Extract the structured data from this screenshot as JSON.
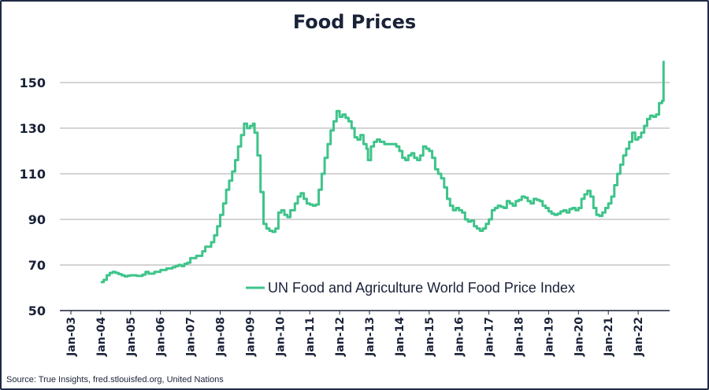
{
  "chart_data": {
    "type": "line",
    "title": "Food Prices",
    "source": "Source: True Insights, fred.stlouisfed.org, United Nations",
    "ylim": [
      50,
      160
    ],
    "yticks": [
      50,
      70,
      90,
      110,
      130,
      150
    ],
    "xlim": [
      2003,
      2023
    ],
    "xticks": [
      {
        "label": "Jan-03",
        "x": 2003
      },
      {
        "label": "Jan-04",
        "x": 2004
      },
      {
        "label": "Jan-05",
        "x": 2005
      },
      {
        "label": "Jan-06",
        "x": 2006
      },
      {
        "label": "Jan-07",
        "x": 2007
      },
      {
        "label": "Jan-08",
        "x": 2008
      },
      {
        "label": "Jan-09",
        "x": 2009
      },
      {
        "label": "Jan-10",
        "x": 2010
      },
      {
        "label": "Jan-11",
        "x": 2011
      },
      {
        "label": "Jan-12",
        "x": 2012
      },
      {
        "label": "Jan-13",
        "x": 2013
      },
      {
        "label": "Jan-14",
        "x": 2014
      },
      {
        "label": "Jan-15",
        "x": 2015
      },
      {
        "label": "Jan-16",
        "x": 2016
      },
      {
        "label": "Jan-17",
        "x": 2017
      },
      {
        "label": "Jan-18",
        "x": 2018
      },
      {
        "label": "Jan-19",
        "x": 2019
      },
      {
        "label": "Jan-20",
        "x": 2020
      },
      {
        "label": "Jan-21",
        "x": 2021
      },
      {
        "label": "Jan-22",
        "x": 2022
      }
    ],
    "grid": true,
    "legend_position": "lower-right",
    "colors": {
      "series": "#3ec48a",
      "grid": "#a9a9a9",
      "axis": "#1a2238",
      "border": "#1f2a44"
    },
    "series": [
      {
        "name": "UN Food and Agriculture World Food Price Index",
        "points": [
          [
            2004.0,
            62.5
          ],
          [
            2004.1,
            63.5
          ],
          [
            2004.2,
            65.5
          ],
          [
            2004.3,
            66.5
          ],
          [
            2004.4,
            67.0
          ],
          [
            2004.5,
            66.5
          ],
          [
            2004.6,
            66.0
          ],
          [
            2004.7,
            65.5
          ],
          [
            2004.8,
            65.0
          ],
          [
            2004.9,
            65.3
          ],
          [
            2005.0,
            65.5
          ],
          [
            2005.2,
            65.2
          ],
          [
            2005.4,
            65.8
          ],
          [
            2005.5,
            67.0
          ],
          [
            2005.6,
            66.2
          ],
          [
            2005.8,
            67.0
          ],
          [
            2006.0,
            67.8
          ],
          [
            2006.2,
            68.5
          ],
          [
            2006.4,
            69.0
          ],
          [
            2006.5,
            69.5
          ],
          [
            2006.6,
            70.0
          ],
          [
            2006.7,
            69.5
          ],
          [
            2006.8,
            70.5
          ],
          [
            2006.9,
            71.0
          ],
          [
            2007.0,
            73.0
          ],
          [
            2007.2,
            74.0
          ],
          [
            2007.4,
            76.0
          ],
          [
            2007.5,
            78.0
          ],
          [
            2007.7,
            80.0
          ],
          [
            2007.8,
            83.0
          ],
          [
            2007.9,
            87.0
          ],
          [
            2008.0,
            92.0
          ],
          [
            2008.1,
            97.0
          ],
          [
            2008.2,
            103.0
          ],
          [
            2008.3,
            107.0
          ],
          [
            2008.4,
            111.0
          ],
          [
            2008.5,
            116.0
          ],
          [
            2008.6,
            122.0
          ],
          [
            2008.7,
            127.0
          ],
          [
            2008.8,
            132.0
          ],
          [
            2008.9,
            130.0
          ],
          [
            2009.0,
            131.0
          ],
          [
            2009.1,
            132.0
          ],
          [
            2009.15,
            128.0
          ],
          [
            2009.25,
            118.0
          ],
          [
            2009.35,
            102.0
          ],
          [
            2009.45,
            88.0
          ],
          [
            2009.55,
            86.0
          ],
          [
            2009.65,
            85.0
          ],
          [
            2009.75,
            84.5
          ],
          [
            2009.85,
            86.0
          ],
          [
            2009.95,
            93.0
          ],
          [
            2010.05,
            94.0
          ],
          [
            2010.15,
            92.0
          ],
          [
            2010.25,
            91.0
          ],
          [
            2010.35,
            94.0
          ],
          [
            2010.5,
            97.0
          ],
          [
            2010.6,
            100.0
          ],
          [
            2010.7,
            101.5
          ],
          [
            2010.8,
            99.0
          ],
          [
            2010.9,
            97.0
          ],
          [
            2011.0,
            96.5
          ],
          [
            2011.1,
            96.0
          ],
          [
            2011.2,
            96.5
          ],
          [
            2011.3,
            103.0
          ],
          [
            2011.4,
            110.0
          ],
          [
            2011.5,
            117.0
          ],
          [
            2011.6,
            123.0
          ],
          [
            2011.7,
            129.0
          ],
          [
            2011.8,
            133.0
          ],
          [
            2011.9,
            137.5
          ],
          [
            2012.0,
            135.0
          ],
          [
            2012.1,
            136.0
          ],
          [
            2012.2,
            134.5
          ],
          [
            2012.3,
            133.0
          ],
          [
            2012.4,
            130.0
          ],
          [
            2012.5,
            126.0
          ],
          [
            2012.6,
            125.0
          ],
          [
            2012.7,
            127.0
          ],
          [
            2012.8,
            123.0
          ],
          [
            2012.9,
            121.0
          ],
          [
            2012.95,
            116.0
          ],
          [
            2013.05,
            122.0
          ],
          [
            2013.15,
            124.0
          ],
          [
            2013.25,
            125.0
          ],
          [
            2013.35,
            124.0
          ],
          [
            2013.5,
            123.0
          ],
          [
            2013.7,
            123.0
          ],
          [
            2013.9,
            122.0
          ],
          [
            2014.0,
            120.0
          ],
          [
            2014.1,
            117.0
          ],
          [
            2014.2,
            116.0
          ],
          [
            2014.3,
            118.0
          ],
          [
            2014.4,
            119.0
          ],
          [
            2014.5,
            117.0
          ],
          [
            2014.6,
            116.0
          ],
          [
            2014.7,
            118.0
          ],
          [
            2014.8,
            122.0
          ],
          [
            2014.9,
            121.0
          ],
          [
            2015.0,
            120.0
          ],
          [
            2015.1,
            117.0
          ],
          [
            2015.2,
            112.0
          ],
          [
            2015.3,
            110.0
          ],
          [
            2015.4,
            108.0
          ],
          [
            2015.5,
            104.0
          ],
          [
            2015.6,
            99.0
          ],
          [
            2015.7,
            96.0
          ],
          [
            2015.8,
            94.0
          ],
          [
            2015.9,
            95.0
          ],
          [
            2016.0,
            94.0
          ],
          [
            2016.1,
            93.0
          ],
          [
            2016.2,
            90.0
          ],
          [
            2016.3,
            89.0
          ],
          [
            2016.4,
            89.5
          ],
          [
            2016.5,
            87.0
          ],
          [
            2016.6,
            86.0
          ],
          [
            2016.7,
            85.0
          ],
          [
            2016.8,
            86.0
          ],
          [
            2016.9,
            88.0
          ],
          [
            2017.0,
            90.0
          ],
          [
            2017.1,
            94.0
          ],
          [
            2017.2,
            95.0
          ],
          [
            2017.3,
            96.0
          ],
          [
            2017.4,
            95.5
          ],
          [
            2017.5,
            95.0
          ],
          [
            2017.6,
            98.0
          ],
          [
            2017.7,
            97.0
          ],
          [
            2017.8,
            96.0
          ],
          [
            2017.9,
            98.0
          ],
          [
            2018.0,
            98.5
          ],
          [
            2018.1,
            100.0
          ],
          [
            2018.2,
            99.5
          ],
          [
            2018.3,
            98.0
          ],
          [
            2018.4,
            97.0
          ],
          [
            2018.5,
            99.0
          ],
          [
            2018.6,
            98.5
          ],
          [
            2018.7,
            98.0
          ],
          [
            2018.8,
            96.0
          ],
          [
            2018.9,
            95.0
          ],
          [
            2019.0,
            93.5
          ],
          [
            2019.1,
            92.5
          ],
          [
            2019.2,
            92.0
          ],
          [
            2019.3,
            92.5
          ],
          [
            2019.4,
            93.5
          ],
          [
            2019.5,
            94.0
          ],
          [
            2019.6,
            93.0
          ],
          [
            2019.7,
            94.5
          ],
          [
            2019.8,
            95.0
          ],
          [
            2019.9,
            94.0
          ],
          [
            2020.0,
            95.0
          ],
          [
            2020.1,
            99.0
          ],
          [
            2020.2,
            101.0
          ],
          [
            2020.3,
            102.5
          ],
          [
            2020.4,
            100.0
          ],
          [
            2020.5,
            95.0
          ],
          [
            2020.6,
            92.0
          ],
          [
            2020.7,
            91.5
          ],
          [
            2020.8,
            93.0
          ],
          [
            2020.9,
            95.0
          ],
          [
            2021.0,
            97.0
          ],
          [
            2021.1,
            100.0
          ],
          [
            2021.2,
            105.0
          ],
          [
            2021.3,
            110.0
          ],
          [
            2021.4,
            114.0
          ],
          [
            2021.5,
            118.0
          ],
          [
            2021.6,
            121.0
          ],
          [
            2021.7,
            124.0
          ],
          [
            2021.8,
            128.0
          ],
          [
            2021.9,
            125.0
          ],
          [
            2022.0,
            126.0
          ],
          [
            2022.1,
            128.0
          ],
          [
            2022.2,
            131.0
          ],
          [
            2022.3,
            134.0
          ],
          [
            2022.4,
            135.5
          ],
          [
            2022.5,
            135.0
          ],
          [
            2022.6,
            136.0
          ],
          [
            2022.7,
            141.0
          ],
          [
            2022.8,
            142.0
          ],
          [
            2022.85,
            159.5
          ]
        ]
      }
    ]
  }
}
